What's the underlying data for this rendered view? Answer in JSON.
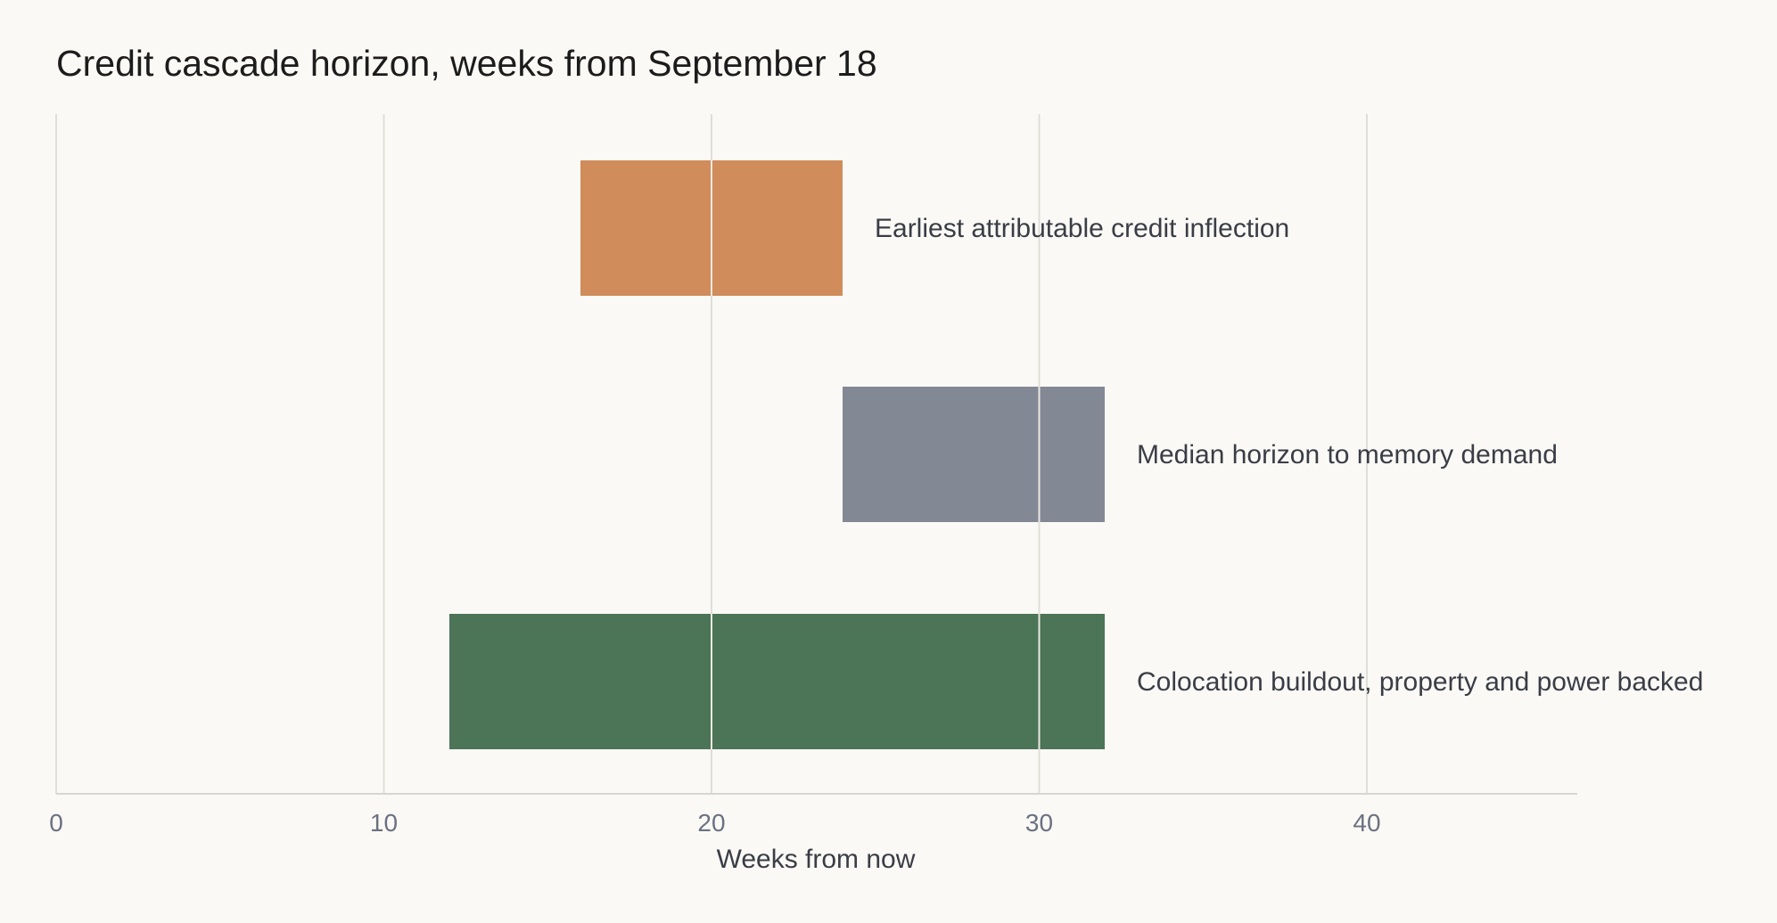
{
  "chart_data": {
    "type": "bar",
    "orientation": "horizontal-range",
    "title": "Credit cascade horizon, weeks from September 18",
    "xlabel": "Weeks from now",
    "ylabel": "",
    "xlim": [
      0,
      46.5
    ],
    "xticks": [
      0,
      10,
      20,
      30,
      40
    ],
    "xtick_labels": [
      "0",
      "10",
      "20",
      "30",
      "40"
    ],
    "grid": "vertical",
    "legend": "none",
    "bars": [
      {
        "label": "Earliest attributable credit inflection",
        "start": 16,
        "end": 24,
        "color": "#d08c5a"
      },
      {
        "label": "Median horizon to memory demand",
        "start": 24,
        "end": 32,
        "color": "#838895"
      },
      {
        "label": "Colocation buildout, property and power backed",
        "start": 12,
        "end": 32,
        "color": "#4c7456"
      }
    ]
  },
  "colors": {
    "background": "#faf9f6",
    "grid": "#e0ded8",
    "axis": "#d8d6d0",
    "inner_grid": "#ece9e2"
  }
}
